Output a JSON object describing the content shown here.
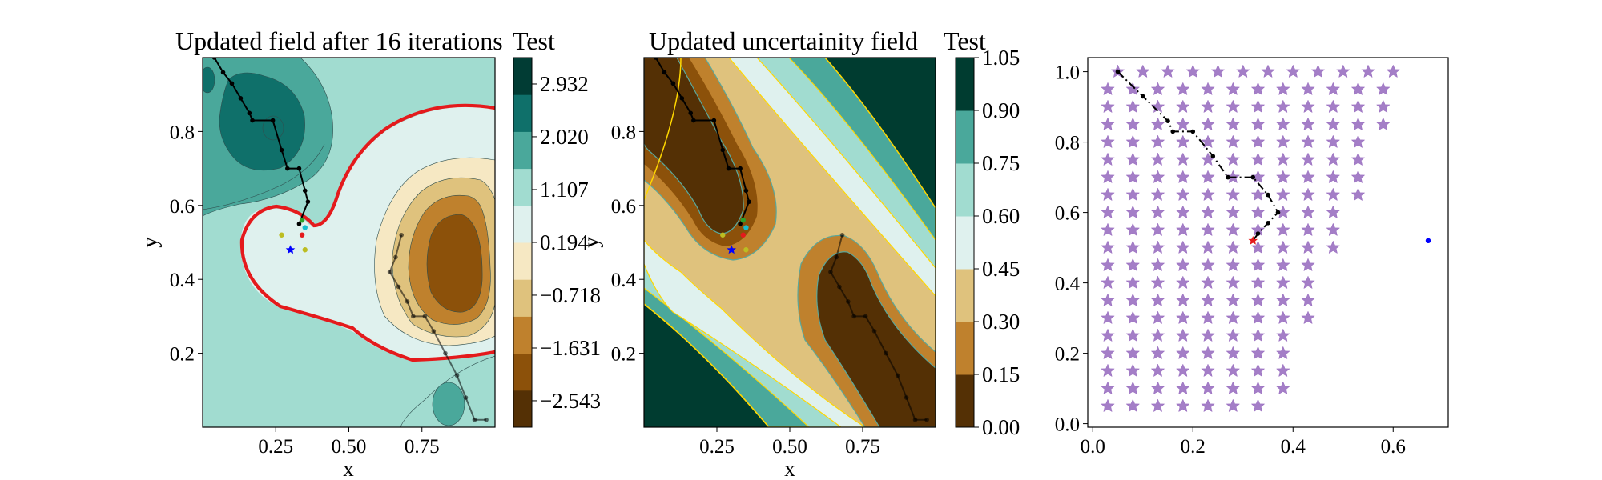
{
  "chart_data": [
    {
      "type": "contour",
      "title": "Updated field after 16 iterations",
      "colorbar_label": "Test",
      "xlabel": "x",
      "ylabel": "y",
      "xlim": [
        0.0,
        1.0
      ],
      "ylim": [
        0.0,
        1.0
      ],
      "xticks": [
        "0.25",
        "0.50",
        "0.75"
      ],
      "xtick_values": [
        0.25,
        0.5,
        0.75
      ],
      "yticks": [
        "0.2",
        "0.4",
        "0.6",
        "0.8"
      ],
      "ytick_values": [
        0.2,
        0.4,
        0.6,
        0.8
      ],
      "colorbar_ticks": [
        "2.932",
        "2.020",
        "1.107",
        "0.194",
        "−0.718",
        "−1.631",
        "−2.543"
      ],
      "colorbar_tick_values": [
        2.932,
        2.02,
        1.107,
        0.194,
        -0.718,
        -1.631,
        -2.543
      ],
      "colorbar_range": [
        -3.0,
        3.388
      ],
      "colorbar_colors": [
        "#543005",
        "#8c510a",
        "#bf812d",
        "#dfc27d",
        "#f6e8c3",
        "#dff1ee",
        "#a1dcd0",
        "#4aa89b",
        "#0f706a",
        "#013c34"
      ],
      "threshold_contour_color": "#e41a1c",
      "threshold_level": 0.0,
      "path_color": "#000000",
      "path1": [
        [
          0.04,
          1.0
        ],
        [
          0.07,
          0.96
        ],
        [
          0.1,
          0.93
        ],
        [
          0.13,
          0.89
        ],
        [
          0.16,
          0.85
        ],
        [
          0.17,
          0.83
        ],
        [
          0.24,
          0.83
        ],
        [
          0.27,
          0.75
        ],
        [
          0.29,
          0.7
        ],
        [
          0.33,
          0.7
        ],
        [
          0.35,
          0.64
        ],
        [
          0.36,
          0.61
        ],
        [
          0.33,
          0.55
        ]
      ],
      "path2": [
        [
          0.68,
          0.52
        ],
        [
          0.66,
          0.46
        ],
        [
          0.64,
          0.42
        ],
        [
          0.67,
          0.38
        ],
        [
          0.7,
          0.34
        ],
        [
          0.72,
          0.3
        ],
        [
          0.76,
          0.3
        ],
        [
          0.79,
          0.26
        ],
        [
          0.83,
          0.2
        ],
        [
          0.87,
          0.14
        ],
        [
          0.9,
          0.08
        ],
        [
          0.93,
          0.02
        ],
        [
          0.97,
          0.02
        ]
      ],
      "markers": [
        {
          "x": 0.3,
          "y": 0.48,
          "symbol": "star",
          "color": "#0000ff"
        },
        {
          "x": 0.34,
          "y": 0.52,
          "symbol": "dot",
          "color": "#e41a1c"
        },
        {
          "x": 0.27,
          "y": 0.52,
          "symbol": "dot",
          "color": "#bcbd22"
        },
        {
          "x": 0.35,
          "y": 0.48,
          "symbol": "dot",
          "color": "#bcbd22"
        },
        {
          "x": 0.35,
          "y": 0.54,
          "symbol": "dot",
          "color": "#17becf"
        },
        {
          "x": 0.34,
          "y": 0.56,
          "symbol": "dot",
          "color": "#2ca02c"
        }
      ]
    },
    {
      "type": "contour",
      "title": "Updated uncertainity field",
      "colorbar_label": "Test",
      "xlabel": "x",
      "ylabel": "y",
      "xlim": [
        0.0,
        1.0
      ],
      "ylim": [
        0.0,
        1.0
      ],
      "xticks": [
        "0.25",
        "0.50",
        "0.75"
      ],
      "xtick_values": [
        0.25,
        0.5,
        0.75
      ],
      "yticks": [
        "0.2",
        "0.4",
        "0.6",
        "0.8"
      ],
      "ytick_values": [
        0.2,
        0.4,
        0.6,
        0.8
      ],
      "colorbar_ticks": [
        "1.05",
        "0.90",
        "0.75",
        "0.60",
        "0.45",
        "0.30",
        "0.15",
        "0.00"
      ],
      "colorbar_tick_values": [
        1.05,
        0.9,
        0.75,
        0.6,
        0.45,
        0.3,
        0.15,
        0.0
      ],
      "colorbar_range": [
        0.0,
        1.05
      ],
      "colorbar_colors": [
        "#543005",
        "#bf812d",
        "#dfc27d",
        "#dff1ee",
        "#a1dcd0",
        "#4aa89b",
        "#003c30"
      ],
      "contour_line_color": "#ffd700",
      "path_color": "#000000",
      "path1": [
        [
          0.04,
          1.0
        ],
        [
          0.07,
          0.96
        ],
        [
          0.1,
          0.93
        ],
        [
          0.13,
          0.89
        ],
        [
          0.16,
          0.85
        ],
        [
          0.17,
          0.83
        ],
        [
          0.24,
          0.83
        ],
        [
          0.27,
          0.75
        ],
        [
          0.29,
          0.7
        ],
        [
          0.33,
          0.7
        ],
        [
          0.35,
          0.64
        ],
        [
          0.36,
          0.61
        ],
        [
          0.33,
          0.55
        ]
      ],
      "path2": [
        [
          0.68,
          0.52
        ],
        [
          0.66,
          0.46
        ],
        [
          0.64,
          0.42
        ],
        [
          0.67,
          0.38
        ],
        [
          0.7,
          0.34
        ],
        [
          0.72,
          0.3
        ],
        [
          0.76,
          0.3
        ],
        [
          0.79,
          0.26
        ],
        [
          0.83,
          0.2
        ],
        [
          0.87,
          0.14
        ],
        [
          0.9,
          0.08
        ],
        [
          0.93,
          0.02
        ],
        [
          0.97,
          0.02
        ]
      ],
      "markers": [
        {
          "x": 0.3,
          "y": 0.48,
          "symbol": "star",
          "color": "#0000ff"
        },
        {
          "x": 0.34,
          "y": 0.52,
          "symbol": "dot",
          "color": "#e41a1c"
        },
        {
          "x": 0.27,
          "y": 0.52,
          "symbol": "dot",
          "color": "#bcbd22"
        },
        {
          "x": 0.35,
          "y": 0.48,
          "symbol": "dot",
          "color": "#bcbd22"
        },
        {
          "x": 0.35,
          "y": 0.54,
          "symbol": "dot",
          "color": "#17becf"
        },
        {
          "x": 0.34,
          "y": 0.56,
          "symbol": "dot",
          "color": "#2ca02c"
        }
      ]
    },
    {
      "type": "scatter",
      "xlim": [
        -0.01,
        0.71
      ],
      "ylim": [
        -0.01,
        1.04
      ],
      "xticks": [
        "0.0",
        "0.2",
        "0.4",
        "0.6"
      ],
      "xtick_values": [
        0.0,
        0.2,
        0.4,
        0.6
      ],
      "yticks": [
        "0.0",
        "0.2",
        "0.4",
        "0.6",
        "0.8",
        "1.0"
      ],
      "ytick_values": [
        0.0,
        0.2,
        0.4,
        0.6,
        0.8,
        1.0
      ],
      "star_color": "#9467bd",
      "grid_step_x": 0.05,
      "grid_step_y": 0.05,
      "row_extents": [
        {
          "y": 1.0,
          "xmin": 0.05,
          "xmax": 0.6
        },
        {
          "y": 0.95,
          "xmin": 0.03,
          "xmax": 0.58
        },
        {
          "y": 0.9,
          "xmin": 0.03,
          "xmax": 0.58
        },
        {
          "y": 0.85,
          "xmin": 0.03,
          "xmax": 0.58
        },
        {
          "y": 0.8,
          "xmin": 0.03,
          "xmax": 0.55
        },
        {
          "y": 0.75,
          "xmin": 0.03,
          "xmax": 0.55
        },
        {
          "y": 0.7,
          "xmin": 0.03,
          "xmax": 0.53
        },
        {
          "y": 0.65,
          "xmin": 0.03,
          "xmax": 0.53
        },
        {
          "y": 0.6,
          "xmin": 0.03,
          "xmax": 0.5
        },
        {
          "y": 0.55,
          "xmin": 0.03,
          "xmax": 0.48
        },
        {
          "y": 0.5,
          "xmin": 0.03,
          "xmax": 0.48
        },
        {
          "y": 0.45,
          "xmin": 0.03,
          "xmax": 0.45
        },
        {
          "y": 0.4,
          "xmin": 0.03,
          "xmax": 0.43
        },
        {
          "y": 0.35,
          "xmin": 0.03,
          "xmax": 0.43
        },
        {
          "y": 0.3,
          "xmin": 0.03,
          "xmax": 0.43
        },
        {
          "y": 0.25,
          "xmin": 0.03,
          "xmax": 0.4
        },
        {
          "y": 0.2,
          "xmin": 0.03,
          "xmax": 0.38
        },
        {
          "y": 0.15,
          "xmin": 0.03,
          "xmax": 0.38
        },
        {
          "y": 0.1,
          "xmin": 0.03,
          "xmax": 0.38
        },
        {
          "y": 0.05,
          "xmin": 0.03,
          "xmax": 0.35
        }
      ],
      "path_color": "#000000",
      "path": [
        [
          0.05,
          1.0
        ],
        [
          0.1,
          0.93
        ],
        [
          0.15,
          0.86
        ],
        [
          0.16,
          0.83
        ],
        [
          0.2,
          0.83
        ],
        [
          0.24,
          0.76
        ],
        [
          0.27,
          0.7
        ],
        [
          0.32,
          0.7
        ],
        [
          0.35,
          0.65
        ],
        [
          0.37,
          0.6
        ],
        [
          0.35,
          0.57
        ],
        [
          0.33,
          0.54
        ],
        [
          0.32,
          0.52
        ]
      ],
      "markers": [
        {
          "x": 0.32,
          "y": 0.52,
          "symbol": "star",
          "color": "#e41a1c"
        },
        {
          "x": 0.67,
          "y": 0.52,
          "symbol": "dot",
          "color": "#0000ff"
        }
      ]
    }
  ]
}
